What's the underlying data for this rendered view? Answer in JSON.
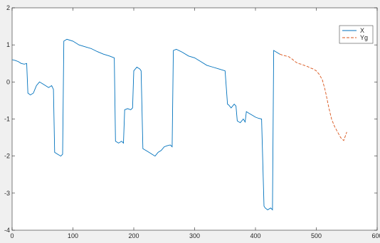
{
  "chart_data": {
    "type": "line",
    "title": "",
    "xlabel": "",
    "ylabel": "",
    "xlim": [
      0,
      600
    ],
    "ylim": [
      -4,
      2
    ],
    "grid": false,
    "legend_position": "top-right",
    "x_ticks": [
      0,
      100,
      200,
      300,
      400,
      500,
      600
    ],
    "y_ticks": [
      -4,
      -3,
      -2,
      -1,
      0,
      1,
      2
    ],
    "series": [
      {
        "name": "X",
        "color": "#0072BD",
        "dash": "solid",
        "x": [
          0,
          5,
          10,
          15,
          20,
          24,
          26,
          30,
          35,
          40,
          45,
          50,
          55,
          60,
          65,
          68,
          70,
          75,
          80,
          83,
          85,
          90,
          100,
          110,
          120,
          130,
          140,
          150,
          160,
          168,
          170,
          175,
          180,
          183,
          185,
          190,
          195,
          198,
          200,
          205,
          210,
          212,
          215,
          220,
          225,
          230,
          235,
          240,
          245,
          250,
          255,
          260,
          263,
          265,
          270,
          280,
          290,
          300,
          310,
          320,
          330,
          340,
          350,
          354,
          356,
          360,
          365,
          368,
          370,
          375,
          380,
          383,
          385,
          390,
          395,
          400,
          405,
          410,
          414,
          416,
          420,
          425,
          428,
          430,
          435,
          440
        ],
        "y": [
          0.6,
          0.58,
          0.55,
          0.5,
          0.48,
          0.5,
          -0.3,
          -0.35,
          -0.3,
          -0.1,
          0.0,
          -0.05,
          -0.1,
          -0.15,
          -0.1,
          -0.2,
          -1.9,
          -1.95,
          -2.0,
          -1.95,
          1.1,
          1.15,
          1.1,
          1.0,
          0.95,
          0.9,
          0.82,
          0.75,
          0.7,
          0.65,
          -1.6,
          -1.65,
          -1.6,
          -1.65,
          -0.75,
          -0.72,
          -0.75,
          -0.7,
          0.3,
          0.4,
          0.35,
          0.3,
          -1.8,
          -1.85,
          -1.9,
          -1.95,
          -2.0,
          -1.9,
          -1.85,
          -1.75,
          -1.72,
          -1.7,
          -1.75,
          0.85,
          0.88,
          0.8,
          0.7,
          0.65,
          0.55,
          0.45,
          0.4,
          0.35,
          0.3,
          -0.6,
          -0.62,
          -0.7,
          -0.6,
          -0.65,
          -1.05,
          -1.1,
          -1.0,
          -1.08,
          -0.8,
          -0.85,
          -0.9,
          -0.95,
          -0.98,
          -1.0,
          -3.35,
          -3.4,
          -3.45,
          -3.4,
          -3.45,
          0.85,
          0.8,
          0.75
        ]
      },
      {
        "name": "Yg",
        "color": "#D95319",
        "dash": "dashed",
        "x": [
          440,
          445,
          450,
          455,
          460,
          465,
          470,
          475,
          480,
          485,
          490,
          495,
          500,
          505,
          510,
          515,
          520,
          525,
          530,
          535,
          540,
          545,
          550
        ],
        "y": [
          0.75,
          0.72,
          0.7,
          0.68,
          0.62,
          0.55,
          0.5,
          0.48,
          0.45,
          0.42,
          0.38,
          0.35,
          0.3,
          0.2,
          0.05,
          -0.25,
          -0.65,
          -1.0,
          -1.2,
          -1.35,
          -1.5,
          -1.58,
          -1.35
        ]
      }
    ]
  }
}
